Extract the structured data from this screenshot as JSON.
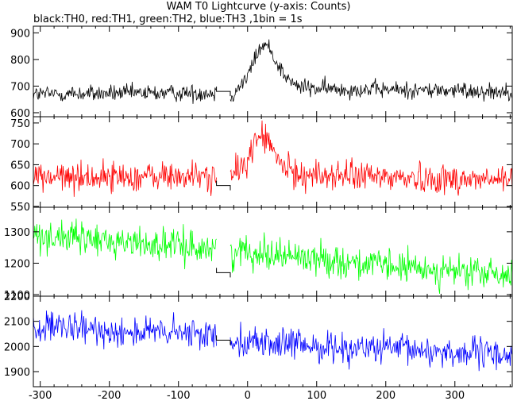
{
  "chart_data": {
    "type": "line",
    "title": "WAM T0 Lightcurve (y-axis: Counts)",
    "subtitle": "black:TH0, red:TH1, green:TH2, blue:TH3 ,1bin = 1s",
    "xlabel": "",
    "xlim": [
      -310,
      383
    ],
    "xticks": [
      -300,
      -200,
      -100,
      0,
      100,
      200,
      300
    ],
    "grid": false,
    "data_gap": [
      -45,
      -25
    ],
    "bin_seconds": 1,
    "panels": [
      {
        "series_name": "TH0",
        "color": "#000000",
        "ylim": [
          585,
          925
        ],
        "yticks": [
          600,
          700,
          800,
          900
        ],
        "gap_level": 680,
        "x": [
          -310,
          -45,
          -35,
          -25,
          0,
          10,
          20,
          30,
          40,
          55,
          70,
          100,
          383
        ],
        "mean": [
          670,
          675,
          682,
          660,
          735,
          800,
          850,
          850,
          800,
          735,
          700,
          690,
          680
        ],
        "noise": 22
      },
      {
        "series_name": "TH1",
        "color": "#ff0000",
        "ylim": [
          548,
          765
        ],
        "yticks": [
          550,
          600,
          650,
          700,
          750
        ],
        "gap_level": 600,
        "x": [
          -310,
          -45,
          -35,
          -25,
          0,
          10,
          20,
          30,
          40,
          55,
          70,
          100,
          383
        ],
        "mean": [
          620,
          622,
          625,
          615,
          660,
          700,
          725,
          705,
          670,
          640,
          628,
          625,
          612
        ],
        "noise": 25
      },
      {
        "series_name": "TH2",
        "color": "#00ff00",
        "ylim": [
          1095,
          1378
        ],
        "yticks": [
          1100,
          1200,
          1300
        ],
        "gap_level": 1170,
        "x": [
          -310,
          -45,
          -35,
          -25,
          0,
          100,
          200,
          383
        ],
        "mean": [
          1290,
          1245,
          1240,
          1235,
          1240,
          1215,
          1190,
          1160
        ],
        "noise": 35
      },
      {
        "series_name": "TH3",
        "color": "#0000ff",
        "ylim": [
          1840,
          2200
        ],
        "yticks": [
          1900,
          2000,
          2100,
          2200
        ],
        "gap_level": 2025,
        "x": [
          -310,
          -45,
          -35,
          -25,
          0,
          100,
          200,
          383
        ],
        "mean": [
          2075,
          2045,
          2040,
          2035,
          2020,
          2000,
          1990,
          1965
        ],
        "noise": 42
      }
    ]
  }
}
